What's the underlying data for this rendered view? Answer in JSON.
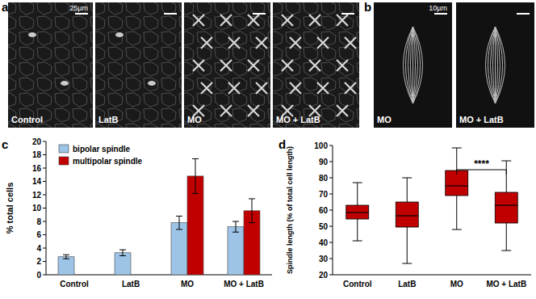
{
  "figure": {
    "panels": [
      {
        "label": "a",
        "scale_bar": "25µm",
        "images": [
          {
            "caption": "Control"
          },
          {
            "caption": "LatB"
          },
          {
            "caption": "MO"
          },
          {
            "caption": "MO + LatB"
          }
        ]
      },
      {
        "label": "b",
        "scale_bar": "10µm",
        "images": [
          {
            "caption": "MO"
          },
          {
            "caption": "MO + LatB"
          }
        ]
      }
    ]
  },
  "chart_data": [
    {
      "title": "c",
      "type": "bar",
      "categories": [
        "Control",
        "LatB",
        "MO",
        "MO + LatB"
      ],
      "series": [
        {
          "name": "bipolar spindle",
          "color": "#9dc3e6",
          "values": [
            2.7,
            3.3,
            7.8,
            7.2
          ],
          "errors": [
            0.3,
            0.45,
            1.0,
            0.8
          ]
        },
        {
          "name": "multipolar spindle",
          "color": "#c00000",
          "values": [
            null,
            null,
            14.8,
            9.6
          ],
          "errors": [
            null,
            null,
            2.6,
            1.8
          ]
        }
      ],
      "ylabel": "% total cells",
      "ylim": [
        0,
        20
      ],
      "yticks": [
        0,
        2,
        4,
        6,
        8,
        10,
        12,
        14,
        16,
        18,
        20
      ],
      "legend": "upper-left"
    },
    {
      "title": "d",
      "type": "box",
      "categories": [
        "Control",
        "LatB",
        "MO",
        "MO + LatB"
      ],
      "min": [
        41,
        27,
        48,
        35
      ],
      "q1": [
        54.5,
        49.5,
        69,
        52
      ],
      "median": [
        58.5,
        56.5,
        75,
        63
      ],
      "q3": [
        63,
        65,
        84.5,
        71
      ],
      "max": [
        77,
        80,
        98.5,
        90.5
      ],
      "color": "#c00000",
      "ylabel": "Spindle length (% of total cell length)",
      "ylim": [
        20,
        100
      ],
      "yticks": [
        20,
        30,
        40,
        50,
        60,
        70,
        80,
        90,
        100
      ],
      "annotations": [
        {
          "text": "****",
          "between": [
            "MO",
            "MO + LatB"
          ]
        }
      ]
    }
  ]
}
